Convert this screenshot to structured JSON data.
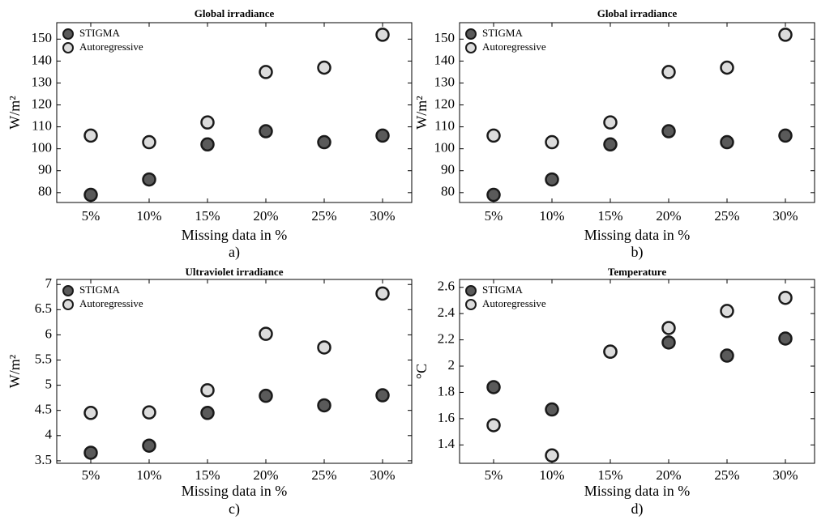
{
  "chart_data": [
    {
      "type": "scatter",
      "title": "Global irradiance",
      "xlabel": "Missing data in %",
      "ylabel": "W/m²",
      "panel_label": "a)",
      "categories": [
        "5%",
        "10%",
        "15%",
        "20%",
        "25%",
        "30%"
      ],
      "series": [
        {
          "name": "STIGMA",
          "color": "#5a5a5a",
          "values": [
            79,
            86,
            102,
            108,
            103,
            106
          ]
        },
        {
          "name": "Autoregressive",
          "color": "#dcdcdc",
          "values": [
            106,
            103,
            112,
            135,
            137,
            152
          ]
        }
      ],
      "ylim": [
        75.5,
        157.5
      ],
      "yticks": [
        80,
        90,
        100,
        110,
        120,
        130,
        140,
        150
      ],
      "legend": "upper left"
    },
    {
      "type": "scatter",
      "title": "Global irradiance",
      "xlabel": "Missing data in %",
      "ylabel": "W/m²",
      "panel_label": "b)",
      "categories": [
        "5%",
        "10%",
        "15%",
        "20%",
        "25%",
        "30%"
      ],
      "series": [
        {
          "name": "STIGMA",
          "color": "#5a5a5a",
          "values": [
            79,
            86,
            102,
            108,
            103,
            106
          ]
        },
        {
          "name": "Autoregressive",
          "color": "#dcdcdc",
          "values": [
            106,
            103,
            112,
            135,
            137,
            152
          ]
        }
      ],
      "ylim": [
        75.5,
        157.5
      ],
      "yticks": [
        80,
        90,
        100,
        110,
        120,
        130,
        140,
        150
      ],
      "legend": "upper left"
    },
    {
      "type": "scatter",
      "title": "Ultraviolet irradiance",
      "xlabel": "Missing data in %",
      "ylabel": "W/m²",
      "panel_label": "c)",
      "categories": [
        "5%",
        "10%",
        "15%",
        "20%",
        "25%",
        "30%"
      ],
      "series": [
        {
          "name": "STIGMA",
          "color": "#5a5a5a",
          "values": [
            3.66,
            3.8,
            4.45,
            4.79,
            4.6,
            4.8
          ]
        },
        {
          "name": "Autoregressive",
          "color": "#dcdcdc",
          "values": [
            4.45,
            4.46,
            4.9,
            6.02,
            5.75,
            6.82
          ]
        }
      ],
      "ylim": [
        3.45,
        7.1
      ],
      "yticks": [
        3.5,
        4,
        4.5,
        5,
        5.5,
        6,
        6.5,
        7
      ],
      "legend": "upper left"
    },
    {
      "type": "scatter",
      "title": "Temperature",
      "xlabel": "Missing data in %",
      "ylabel": "°C",
      "panel_label": "d)",
      "categories": [
        "5%",
        "10%",
        "15%",
        "20%",
        "25%",
        "30%"
      ],
      "series": [
        {
          "name": "STIGMA",
          "color": "#5a5a5a",
          "values": [
            1.84,
            1.67,
            2.11,
            2.18,
            2.08,
            2.21
          ]
        },
        {
          "name": "Autoregressive",
          "color": "#dcdcdc",
          "values": [
            1.55,
            1.32,
            2.11,
            2.29,
            2.42,
            2.52
          ]
        }
      ],
      "ylim": [
        1.26,
        2.66
      ],
      "yticks": [
        1.4,
        1.6,
        1.8,
        2,
        2.2,
        2.4,
        2.6
      ],
      "legend": "upper left"
    }
  ]
}
